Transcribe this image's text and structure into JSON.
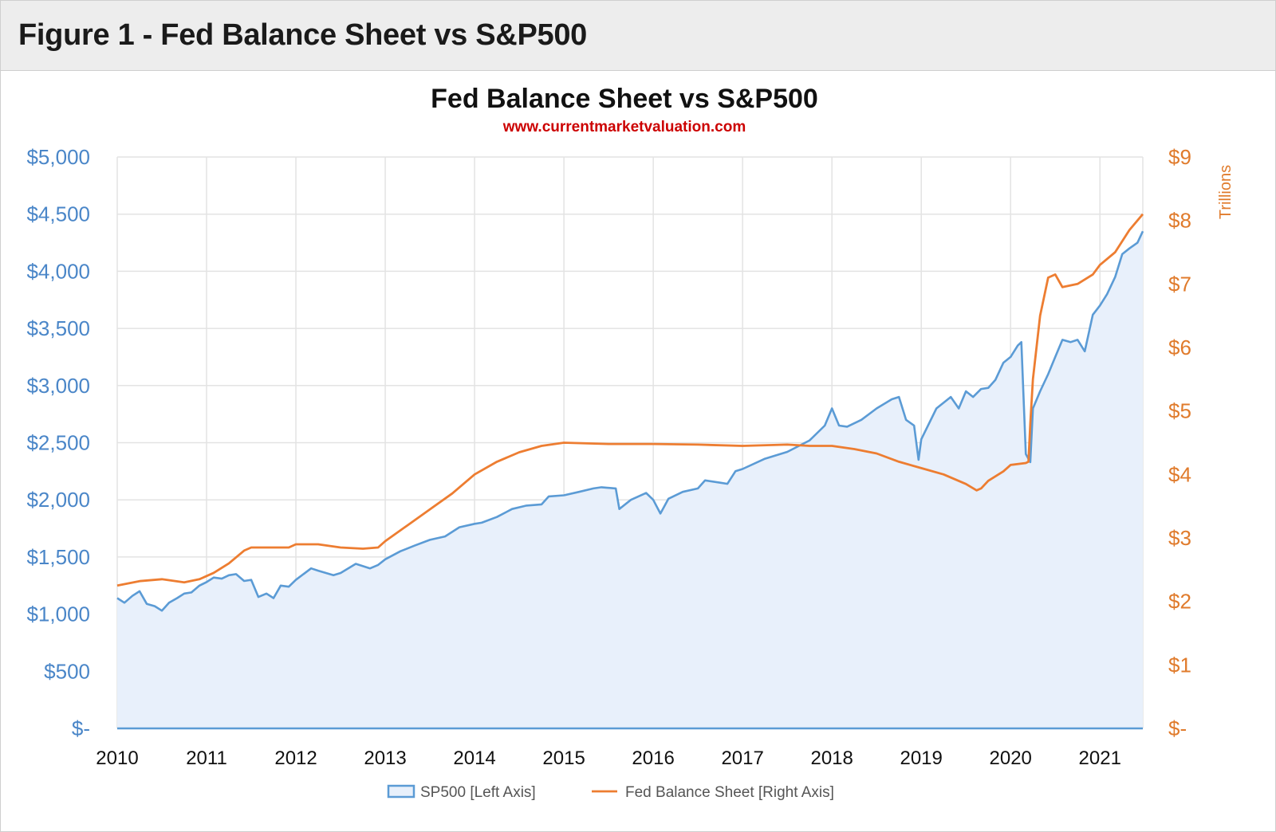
{
  "figure": {
    "header_title": "Figure 1 - Fed Balance Sheet vs S&P500"
  },
  "chart_data": {
    "type": "line",
    "title": "Fed Balance Sheet vs S&P500",
    "subtitle": "www.currentmarketvaluation.com",
    "y_left": {
      "ticks": [
        "$5,000",
        "$4,500",
        "$4,000",
        "$3,500",
        "$3,000",
        "$2,500",
        "$2,000",
        "$1,500",
        "$1,000",
        "$500",
        "$-"
      ],
      "ylim": [
        0,
        5000
      ]
    },
    "y_right": {
      "label": "Trillions",
      "ticks": [
        "$9",
        "$8",
        "$7",
        "$6",
        "$5",
        "$4",
        "$3",
        "$2",
        "$1",
        "$-"
      ],
      "ylim": [
        0,
        9
      ]
    },
    "x_ticks": [
      "2010",
      "2011",
      "2012",
      "2013",
      "2014",
      "2015",
      "2016",
      "2017",
      "2018",
      "2019",
      "2020",
      "2021"
    ],
    "xlim": [
      2010.0,
      2021.48
    ],
    "grid": true,
    "legend_position": "bottom",
    "colors": {
      "sp500": "#5b9bd5",
      "sp500_fill": "#e8f0fb",
      "fed": "#ed7d31",
      "left_axis": "#4a86c8",
      "right_axis": "#e07b2c",
      "subtitle": "#cc0000"
    },
    "series": [
      {
        "name": "SP500 [Left Axis]",
        "axis": "left",
        "style": "area",
        "x": [
          2010.0,
          2010.08,
          2010.17,
          2010.25,
          2010.33,
          2010.42,
          2010.5,
          2010.58,
          2010.67,
          2010.75,
          2010.83,
          2010.92,
          2011.0,
          2011.08,
          2011.17,
          2011.25,
          2011.33,
          2011.42,
          2011.5,
          2011.58,
          2011.67,
          2011.75,
          2011.83,
          2011.92,
          2012.0,
          2012.17,
          2012.25,
          2012.42,
          2012.5,
          2012.67,
          2012.75,
          2012.83,
          2012.92,
          2013.0,
          2013.17,
          2013.33,
          2013.5,
          2013.67,
          2013.83,
          2014.0,
          2014.08,
          2014.25,
          2014.42,
          2014.58,
          2014.75,
          2014.83,
          2015.0,
          2015.17,
          2015.33,
          2015.42,
          2015.58,
          2015.62,
          2015.75,
          2015.92,
          2016.0,
          2016.08,
          2016.17,
          2016.33,
          2016.5,
          2016.58,
          2016.75,
          2016.83,
          2016.92,
          2017.0,
          2017.25,
          2017.5,
          2017.75,
          2017.92,
          2018.0,
          2018.08,
          2018.17,
          2018.33,
          2018.5,
          2018.67,
          2018.75,
          2018.83,
          2018.92,
          2018.97,
          2019.0,
          2019.17,
          2019.33,
          2019.42,
          2019.5,
          2019.58,
          2019.67,
          2019.75,
          2019.83,
          2019.92,
          2020.0,
          2020.08,
          2020.12,
          2020.17,
          2020.22,
          2020.25,
          2020.33,
          2020.42,
          2020.5,
          2020.58,
          2020.67,
          2020.75,
          2020.83,
          2020.92,
          2021.0,
          2021.08,
          2021.17,
          2021.25,
          2021.33,
          2021.42,
          2021.48
        ],
        "values": [
          1140,
          1100,
          1160,
          1200,
          1090,
          1070,
          1030,
          1100,
          1140,
          1180,
          1190,
          1250,
          1280,
          1320,
          1310,
          1340,
          1350,
          1290,
          1300,
          1150,
          1180,
          1140,
          1250,
          1240,
          1300,
          1400,
          1380,
          1340,
          1360,
          1440,
          1420,
          1400,
          1430,
          1480,
          1550,
          1600,
          1650,
          1680,
          1760,
          1790,
          1800,
          1850,
          1920,
          1950,
          1960,
          2030,
          2040,
          2070,
          2100,
          2110,
          2100,
          1920,
          2000,
          2060,
          2000,
          1880,
          2010,
          2070,
          2100,
          2170,
          2150,
          2140,
          2250,
          2270,
          2360,
          2420,
          2520,
          2650,
          2800,
          2650,
          2640,
          2700,
          2800,
          2880,
          2900,
          2700,
          2650,
          2350,
          2530,
          2800,
          2900,
          2800,
          2950,
          2900,
          2970,
          2980,
          3050,
          3200,
          3250,
          3350,
          3380,
          2400,
          2330,
          2800,
          2950,
          3100,
          3250,
          3400,
          3380,
          3400,
          3300,
          3620,
          3700,
          3800,
          3950,
          4150,
          4200,
          4250,
          4350
        ]
      },
      {
        "name": "Fed Balance Sheet [Right Axis]",
        "axis": "right",
        "style": "line",
        "x": [
          2010.0,
          2010.25,
          2010.5,
          2010.75,
          2010.92,
          2011.08,
          2011.25,
          2011.42,
          2011.5,
          2011.75,
          2011.92,
          2012.0,
          2012.25,
          2012.5,
          2012.75,
          2012.92,
          2013.0,
          2013.25,
          2013.5,
          2013.75,
          2014.0,
          2014.25,
          2014.5,
          2014.75,
          2015.0,
          2015.5,
          2016.0,
          2016.5,
          2017.0,
          2017.5,
          2017.75,
          2018.0,
          2018.25,
          2018.5,
          2018.75,
          2019.0,
          2019.25,
          2019.5,
          2019.62,
          2019.67,
          2019.75,
          2019.92,
          2020.0,
          2020.17,
          2020.2,
          2020.22,
          2020.25,
          2020.33,
          2020.42,
          2020.5,
          2020.58,
          2020.75,
          2020.92,
          2021.0,
          2021.17,
          2021.33,
          2021.48
        ],
        "values": [
          2.25,
          2.32,
          2.35,
          2.3,
          2.35,
          2.45,
          2.6,
          2.8,
          2.85,
          2.85,
          2.85,
          2.9,
          2.9,
          2.85,
          2.83,
          2.85,
          2.95,
          3.2,
          3.45,
          3.7,
          4.0,
          4.2,
          4.35,
          4.45,
          4.5,
          4.48,
          4.48,
          4.47,
          4.45,
          4.47,
          4.45,
          4.45,
          4.4,
          4.33,
          4.2,
          4.1,
          4.0,
          3.85,
          3.75,
          3.78,
          3.9,
          4.05,
          4.15,
          4.18,
          4.2,
          4.8,
          5.5,
          6.5,
          7.1,
          7.15,
          6.95,
          7.0,
          7.15,
          7.3,
          7.5,
          7.85,
          8.1
        ]
      }
    ]
  }
}
